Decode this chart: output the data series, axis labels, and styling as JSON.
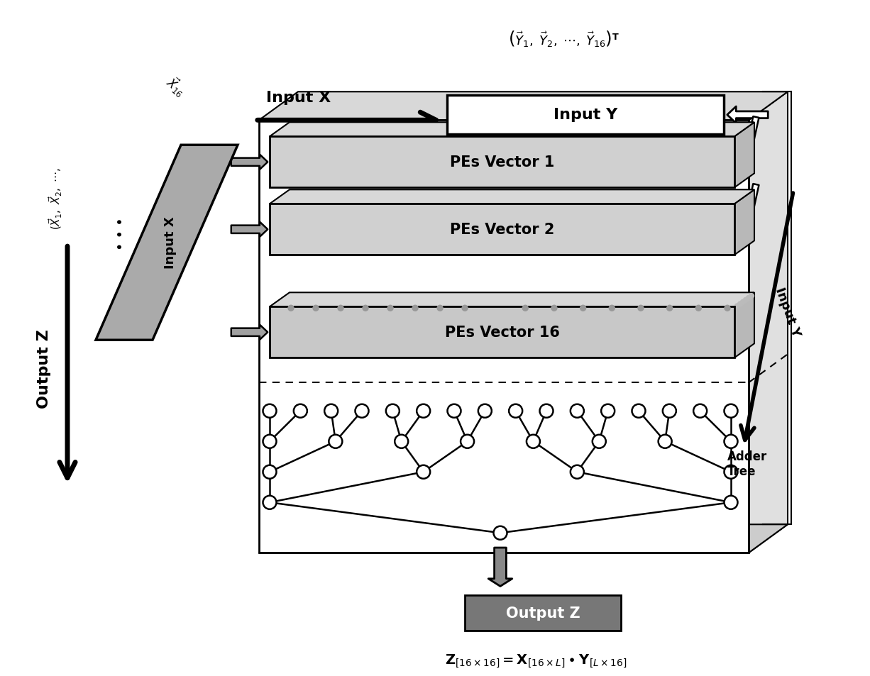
{
  "bg_color": "#ffffff",
  "input_y_label": "Input Y",
  "input_x_label": "Input X",
  "output_z_label": "Output Z",
  "adder_tree_label": "Adder\nTree",
  "output_z_box_label": "Output Z",
  "formula": "$\\mathbf{Z}_{[16\\times16]} = \\mathbf{X}_{[16\\times L]} \\bullet \\mathbf{Y}_{[L\\times16]}$",
  "y_formula": "$\\left(\\vec{Y}_1,\\;\\vec{Y}_2,\\;\\cdots,\\;\\vec{Y}_{16}\\right)^{\\mathbf{T}}$",
  "pe_labels": [
    "PEs Vector 1",
    "PEs Vector 2",
    "PEs Vector 16"
  ],
  "n_leaves": 16,
  "adder_levels": [
    16,
    8,
    4,
    2,
    1
  ]
}
